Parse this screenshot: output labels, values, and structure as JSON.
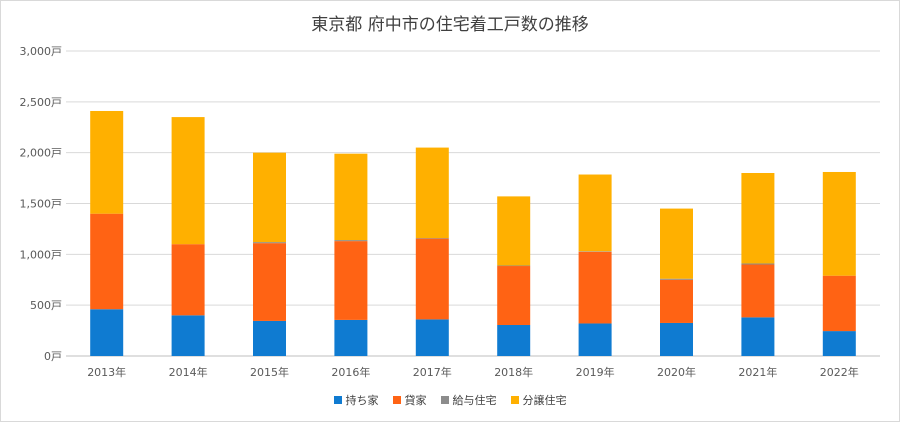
{
  "chart_data": {
    "type": "bar",
    "stacked": true,
    "title": "東京都 府中市の住宅着工戸数の推移",
    "xlabel": "",
    "ylabel": "",
    "ylim": [
      0,
      3000
    ],
    "yticks": [
      {
        "value": 0,
        "label": "0戸"
      },
      {
        "value": 500,
        "label": "500戸"
      },
      {
        "value": 1000,
        "label": "1,000戸"
      },
      {
        "value": 1500,
        "label": "1,500戸"
      },
      {
        "value": 2000,
        "label": "2,000戸"
      },
      {
        "value": 2500,
        "label": "2,500戸"
      },
      {
        "value": 3000,
        "label": "3,000戸"
      }
    ],
    "grid": true,
    "legend_position": "bottom",
    "categories": [
      "2013年",
      "2014年",
      "2015年",
      "2016年",
      "2017年",
      "2018年",
      "2019年",
      "2020年",
      "2021年",
      "2022年"
    ],
    "series": [
      {
        "name": "持ち家",
        "color": "#0f7bd1",
        "values": [
          460,
          400,
          345,
          355,
          360,
          305,
          320,
          325,
          380,
          245
        ]
      },
      {
        "name": "貸家",
        "color": "#ff6314",
        "values": [
          940,
          700,
          765,
          775,
          795,
          580,
          705,
          425,
          520,
          545
        ]
      },
      {
        "name": "給与住宅",
        "color": "#8c8c8c",
        "values": [
          0,
          0,
          10,
          10,
          5,
          5,
          5,
          10,
          10,
          0
        ]
      },
      {
        "name": "分譲住宅",
        "color": "#ffb000",
        "values": [
          1010,
          1250,
          880,
          850,
          890,
          680,
          755,
          690,
          890,
          1020
        ]
      }
    ]
  }
}
